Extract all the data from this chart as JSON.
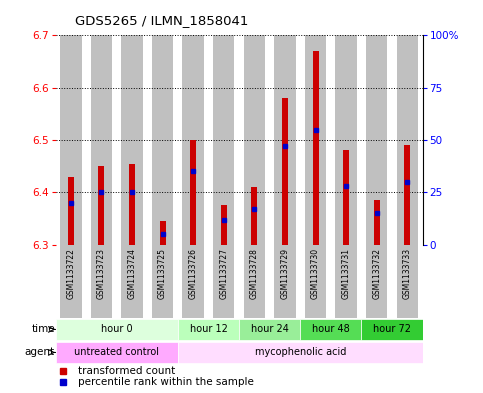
{
  "title": "GDS5265 / ILMN_1858041",
  "samples": [
    "GSM1133722",
    "GSM1133723",
    "GSM1133724",
    "GSM1133725",
    "GSM1133726",
    "GSM1133727",
    "GSM1133728",
    "GSM1133729",
    "GSM1133730",
    "GSM1133731",
    "GSM1133732",
    "GSM1133733"
  ],
  "transformed_count": [
    6.43,
    6.45,
    6.455,
    6.345,
    6.5,
    6.375,
    6.41,
    6.58,
    6.67,
    6.48,
    6.385,
    6.49
  ],
  "percentile_rank": [
    20,
    25,
    25,
    5,
    35,
    12,
    17,
    47,
    55,
    28,
    15,
    30
  ],
  "ylim_left": [
    6.3,
    6.7
  ],
  "ylim_right": [
    0,
    100
  ],
  "yticks_left": [
    6.3,
    6.4,
    6.5,
    6.6,
    6.7
  ],
  "yticks_right": [
    0,
    25,
    50,
    75,
    100
  ],
  "bar_color": "#cc0000",
  "percentile_color": "#0000cc",
  "background_bar": "#c0c0c0",
  "time_groups": [
    {
      "label": "hour 0",
      "start": 0,
      "end": 4,
      "color": "#ddffdd"
    },
    {
      "label": "hour 12",
      "start": 4,
      "end": 6,
      "color": "#bbffbb"
    },
    {
      "label": "hour 24",
      "start": 6,
      "end": 8,
      "color": "#99ee99"
    },
    {
      "label": "hour 48",
      "start": 8,
      "end": 10,
      "color": "#55dd55"
    },
    {
      "label": "hour 72",
      "start": 10,
      "end": 12,
      "color": "#33cc33"
    }
  ],
  "agent_groups": [
    {
      "label": "untreated control",
      "start": 0,
      "end": 4,
      "color": "#ffaaff"
    },
    {
      "label": "mycophenolic acid",
      "start": 4,
      "end": 12,
      "color": "#ffddff"
    }
  ],
  "legend_items": [
    {
      "label": "transformed count",
      "color": "#cc0000"
    },
    {
      "label": "percentile rank within the sample",
      "color": "#0000cc"
    }
  ]
}
